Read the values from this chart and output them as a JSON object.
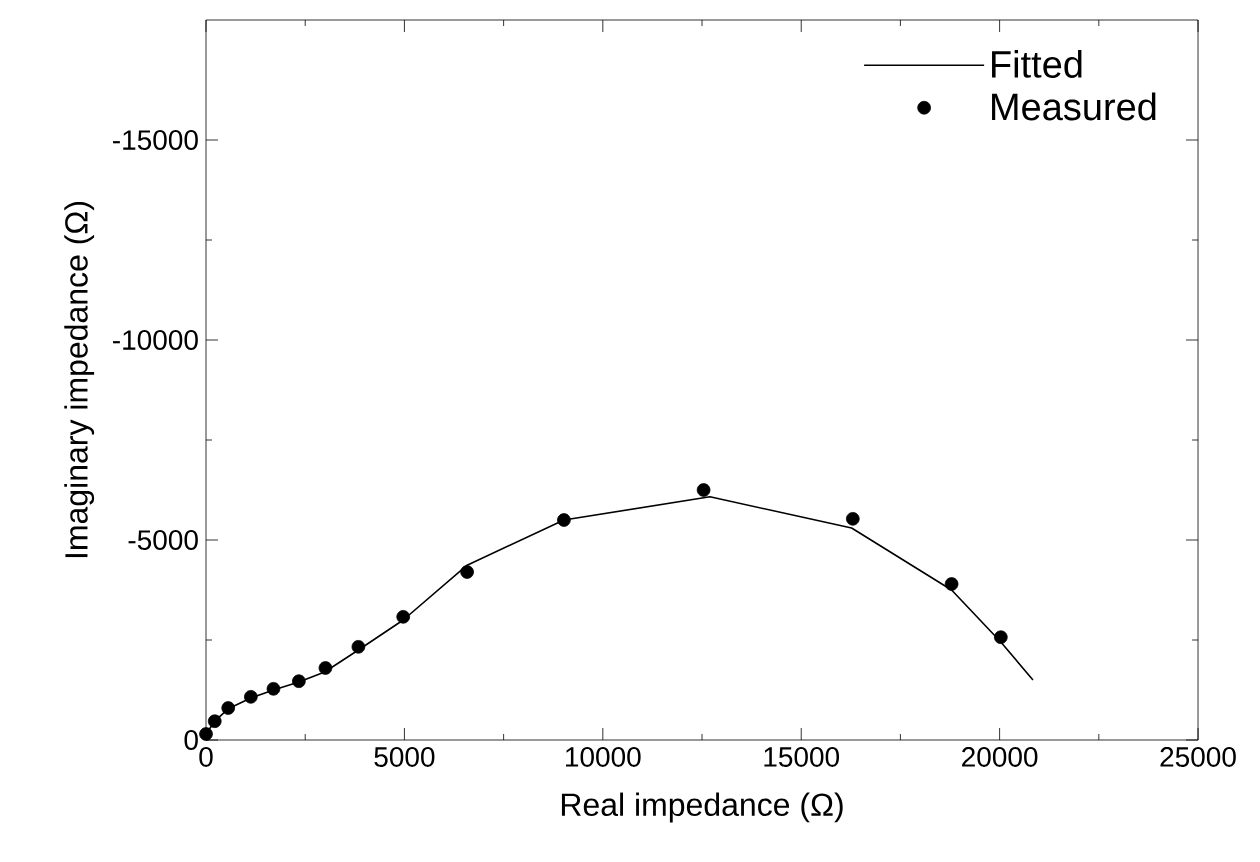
{
  "chart_data": {
    "type": "scatter",
    "xlabel": "Real impedance (Ω)",
    "ylabel": "Imaginary impedance (Ω)",
    "xlim": [
      0,
      25000
    ],
    "ylim": [
      0,
      -18000
    ],
    "xticks": [
      0,
      5000,
      10000,
      15000,
      20000,
      25000
    ],
    "yticks": [
      0,
      -5000,
      -10000,
      -15000
    ],
    "legend": "top right",
    "grid": false,
    "series": [
      {
        "name": "Fitted",
        "type": "line",
        "color": "#000000",
        "line_style": "solid",
        "x": [
          0,
          220,
          560,
          1130,
          1700,
          2340,
          2990,
          3840,
          4970,
          6580,
          9020,
          12700,
          16270,
          18790,
          20030,
          20840
        ],
        "values": [
          -150,
          -470,
          -780,
          -1050,
          -1250,
          -1450,
          -1700,
          -2250,
          -3000,
          -4370,
          -5500,
          -6080,
          -5300,
          -3750,
          -2450,
          -1500
        ]
      },
      {
        "name": "Measured",
        "color": "#000000",
        "marker": "circle",
        "x": [
          0,
          220,
          560,
          1130,
          1700,
          2340,
          3010,
          3840,
          4970,
          6580,
          9020,
          12540,
          16300,
          18790,
          20030
        ],
        "values": [
          -150,
          -470,
          -800,
          -1080,
          -1280,
          -1470,
          -1800,
          -2330,
          -3080,
          -4200,
          -5500,
          -6250,
          -5530,
          -3900,
          -2570
        ]
      }
    ]
  }
}
